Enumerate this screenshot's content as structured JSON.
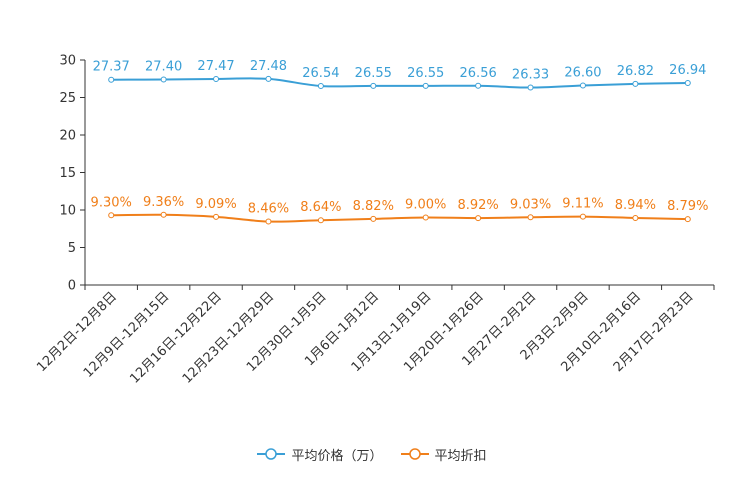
{
  "chart_data": {
    "type": "line",
    "categories": [
      "12月2日-12月8日",
      "12月9日-12月15日",
      "12月16日-12月22日",
      "12月23日-12月29日",
      "12月30日-1月5日",
      "1月6日-1月12日",
      "1月13日-1月19日",
      "1月20日-1月26日",
      "1月27日-2月2日",
      "2月3日-2月9日",
      "2月10日-2月16日",
      "2月17日-2月23日"
    ],
    "ylim": [
      0,
      30
    ],
    "yticks": [
      "0",
      "5",
      "10",
      "15",
      "20",
      "25",
      "30"
    ],
    "series": [
      {
        "name": "平均价格（万）",
        "color": "#3a9fd6",
        "values": [
          27.37,
          27.4,
          27.47,
          27.48,
          26.54,
          26.55,
          26.55,
          26.56,
          26.33,
          26.6,
          26.82,
          26.94
        ],
        "labels": [
          "27.37",
          "27.40",
          "27.47",
          "27.48",
          "26.54",
          "26.55",
          "26.55",
          "26.56",
          "26.33",
          "26.60",
          "26.82",
          "26.94"
        ]
      },
      {
        "name": "平均折扣",
        "color": "#f07f1a",
        "values": [
          9.3,
          9.36,
          9.09,
          8.46,
          8.64,
          8.82,
          9.0,
          8.92,
          9.03,
          9.11,
          8.94,
          8.79
        ],
        "labels": [
          "9.30%",
          "9.36%",
          "9.09%",
          "8.46%",
          "8.64%",
          "8.82%",
          "9.00%",
          "8.92%",
          "9.03%",
          "9.11%",
          "8.94%",
          "8.79%"
        ]
      }
    ],
    "legend": "bottom-center"
  }
}
